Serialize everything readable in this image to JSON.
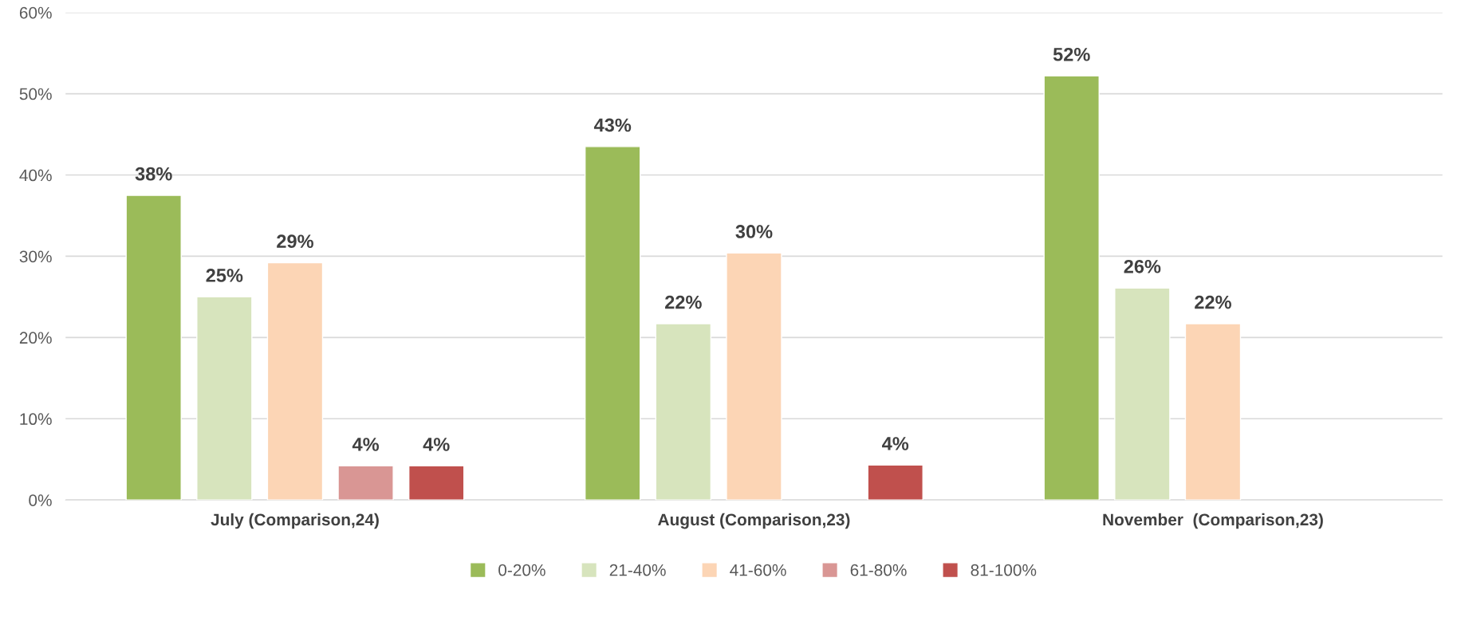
{
  "chart_data": {
    "type": "bar",
    "categories": [
      "July (Comparison,24)",
      "August (Comparison,23)",
      "November  (Comparison,23)"
    ],
    "series": [
      {
        "name": "0-20%",
        "color": "#9bbb59",
        "values": [
          37.5,
          43.5,
          52.2
        ],
        "value_labels": [
          "38%",
          "43%",
          "52%"
        ]
      },
      {
        "name": "21-40%",
        "color": "#d7e4bd",
        "values": [
          25.0,
          21.7,
          26.1
        ],
        "value_labels": [
          "25%",
          "22%",
          "26%"
        ]
      },
      {
        "name": "41-60%",
        "color": "#fcd5b5",
        "values": [
          29.2,
          30.4,
          21.7
        ],
        "value_labels": [
          "29%",
          "30%",
          "22%"
        ]
      },
      {
        "name": "61-80%",
        "color": "#d99694",
        "values": [
          4.2,
          null,
          null
        ],
        "value_labels": [
          "4%",
          null,
          null
        ]
      },
      {
        "name": "81-100%",
        "color": "#c0504d",
        "values": [
          4.2,
          4.3,
          null
        ],
        "value_labels": [
          "4%",
          "4%",
          null
        ]
      }
    ],
    "ylim": [
      0,
      60
    ],
    "yticks": [
      {
        "value": 0,
        "label": "0%"
      },
      {
        "value": 10,
        "label": "10%"
      },
      {
        "value": 20,
        "label": "20%"
      },
      {
        "value": 30,
        "label": "30%"
      },
      {
        "value": 40,
        "label": "40%"
      },
      {
        "value": 50,
        "label": "50%"
      },
      {
        "value": 60,
        "label": "60%"
      }
    ],
    "grid": "y",
    "legend": "bottom"
  }
}
